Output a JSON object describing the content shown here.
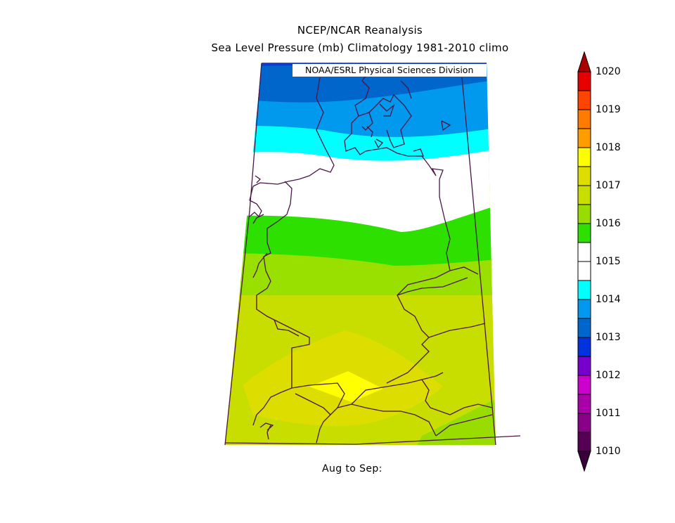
{
  "header": {
    "title": "NCEP/NCAR Reanalysis",
    "subtitle": "Sea Level Pressure (mb) Climatology 1981-2010 climo",
    "credit": "NOAA/ESRL Physical Sciences Division"
  },
  "footer": {
    "period_label": "Aug to Sep:"
  },
  "legend": {
    "levels": [
      {
        "value": "1020",
        "color": "#d40000"
      },
      {
        "value": "1019",
        "color": "#ff6a00"
      },
      {
        "value": "1018",
        "color": "#ffaa00"
      },
      {
        "value": "1017",
        "color": "#ffff00"
      },
      {
        "value": "1016",
        "color": "#c8dd00"
      },
      {
        "value": "1015",
        "color": "#2ee000"
      },
      {
        "value": "1014",
        "color": "#ffffff"
      },
      {
        "value": "1013",
        "color": "#00ffff"
      },
      {
        "value": "1012",
        "color": "#0099ee"
      },
      {
        "value": "1011",
        "color": "#0066cc"
      },
      {
        "value": "1010",
        "color": "#0033cc"
      }
    ],
    "labels": [
      "1020",
      "1019",
      "1018",
      "1017",
      "1016",
      "1015",
      "1014",
      "1013",
      "1012",
      "1011",
      "1010"
    ],
    "segment_colors": [
      "#e60000",
      "#ff4400",
      "#ff8800",
      "#ffbb00",
      "#ffff00",
      "#c8dd00",
      "#99dd00",
      "#2ee000",
      "#ffffff",
      "#00ffff",
      "#0099ee",
      "#0066cc",
      "#0033dd",
      "#7700cc",
      "#cc00cc",
      "#aa00aa",
      "#880088",
      "#550055"
    ]
  },
  "map": {
    "field_colors": {
      "band_1013": "#0a54c8",
      "band_1014a": "#0066cc",
      "band_1014b": "#0099ee",
      "band_1014c": "#00ffff",
      "band_1015": "#ffffff",
      "band_1016": "#2ee000",
      "band_1016b": "#99e000",
      "band_1017": "#c8dd00",
      "band_1017b": "#dddd00",
      "band_1018": "#ffff00"
    },
    "coastline_color": "#4a1648"
  }
}
